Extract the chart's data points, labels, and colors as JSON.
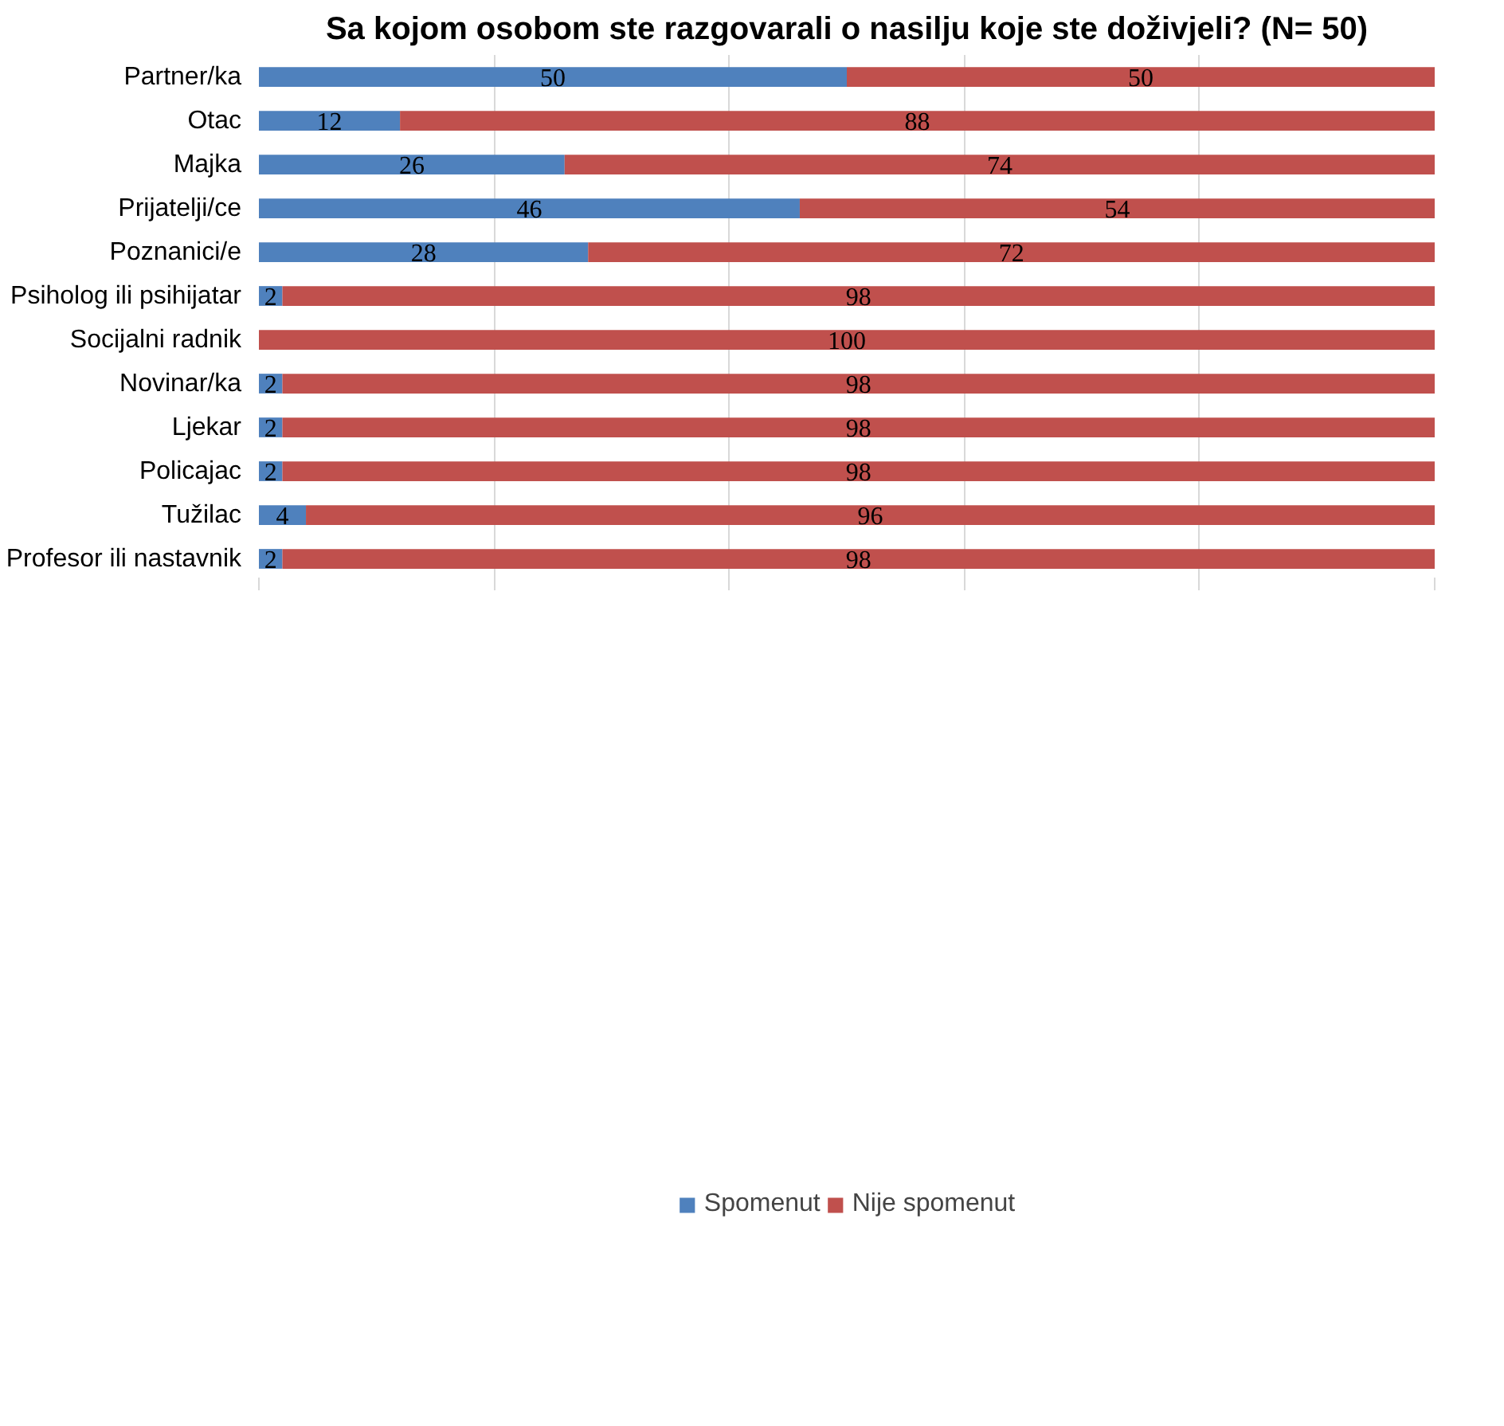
{
  "chart_data": {
    "type": "bar",
    "orientation": "horizontal",
    "stacked": true,
    "title": "Sa kojom osobom ste razgovarali o nasilju koje ste doživjeli? (N= 50)",
    "categories": [
      "Partner/ka",
      "Otac",
      "Majka",
      "Prijatelji/ce",
      "Poznanici/e",
      "Psiholog ili psihijatar",
      "Socijalni radnik",
      "Novinar/ka",
      "Ljekar",
      "Policajac",
      "Tužilac",
      "Profesor ili nastavnik"
    ],
    "series": [
      {
        "name": "Spomenut",
        "color": "#4f81bd",
        "values": [
          50,
          12,
          26,
          46,
          28,
          2,
          0,
          2,
          2,
          2,
          4,
          2
        ],
        "value_labels": [
          "50",
          "12",
          "26",
          "46",
          "28",
          "2",
          null,
          "2",
          "2",
          "2",
          "4",
          "2"
        ]
      },
      {
        "name": "Nije spomenut",
        "color": "#c0504d",
        "values": [
          50,
          88,
          74,
          54,
          72,
          98,
          100,
          98,
          98,
          98,
          96,
          98
        ],
        "value_labels": [
          "50",
          "88",
          "74",
          "54",
          "72",
          "98",
          "100",
          "98",
          "98",
          "98",
          "96",
          "98"
        ]
      }
    ],
    "xlim": [
      0,
      100
    ],
    "xticks": [
      {
        "value": 0,
        "label": null
      },
      {
        "value": 20,
        "label": null
      },
      {
        "value": 40,
        "label": null
      },
      {
        "value": 60,
        "label": null
      },
      {
        "value": 80,
        "label": null
      },
      {
        "value": 100,
        "label": null
      }
    ],
    "tick_labels": "y",
    "grid": "x",
    "legend": "bottom"
  }
}
